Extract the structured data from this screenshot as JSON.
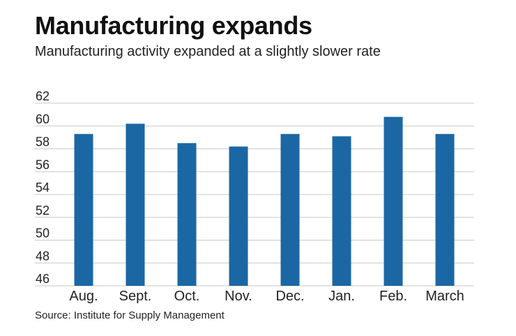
{
  "header": {
    "title": "Manufacturing expands",
    "subtitle": "Manufacturing activity expanded at a slightly slower rate"
  },
  "footer": {
    "source": "Source: Institute for Supply Management"
  },
  "colors": {
    "bar": "#1b67a4",
    "grid": "#c8c8c8"
  },
  "chart_data": {
    "type": "bar",
    "title": "Manufacturing expands",
    "subtitle": "Manufacturing activity expanded at a slightly slower rate",
    "xlabel": "",
    "ylabel": "",
    "categories": [
      "Aug.",
      "Sept.",
      "Oct.",
      "Nov.",
      "Dec.",
      "Jan.",
      "Feb.",
      "March"
    ],
    "values": [
      59.3,
      60.2,
      58.5,
      58.2,
      59.3,
      59.1,
      60.8,
      59.3
    ],
    "ylim": [
      46,
      62
    ],
    "yticks": [
      46,
      48,
      50,
      52,
      54,
      56,
      58,
      60,
      62
    ],
    "grid": true,
    "legend": "none"
  }
}
